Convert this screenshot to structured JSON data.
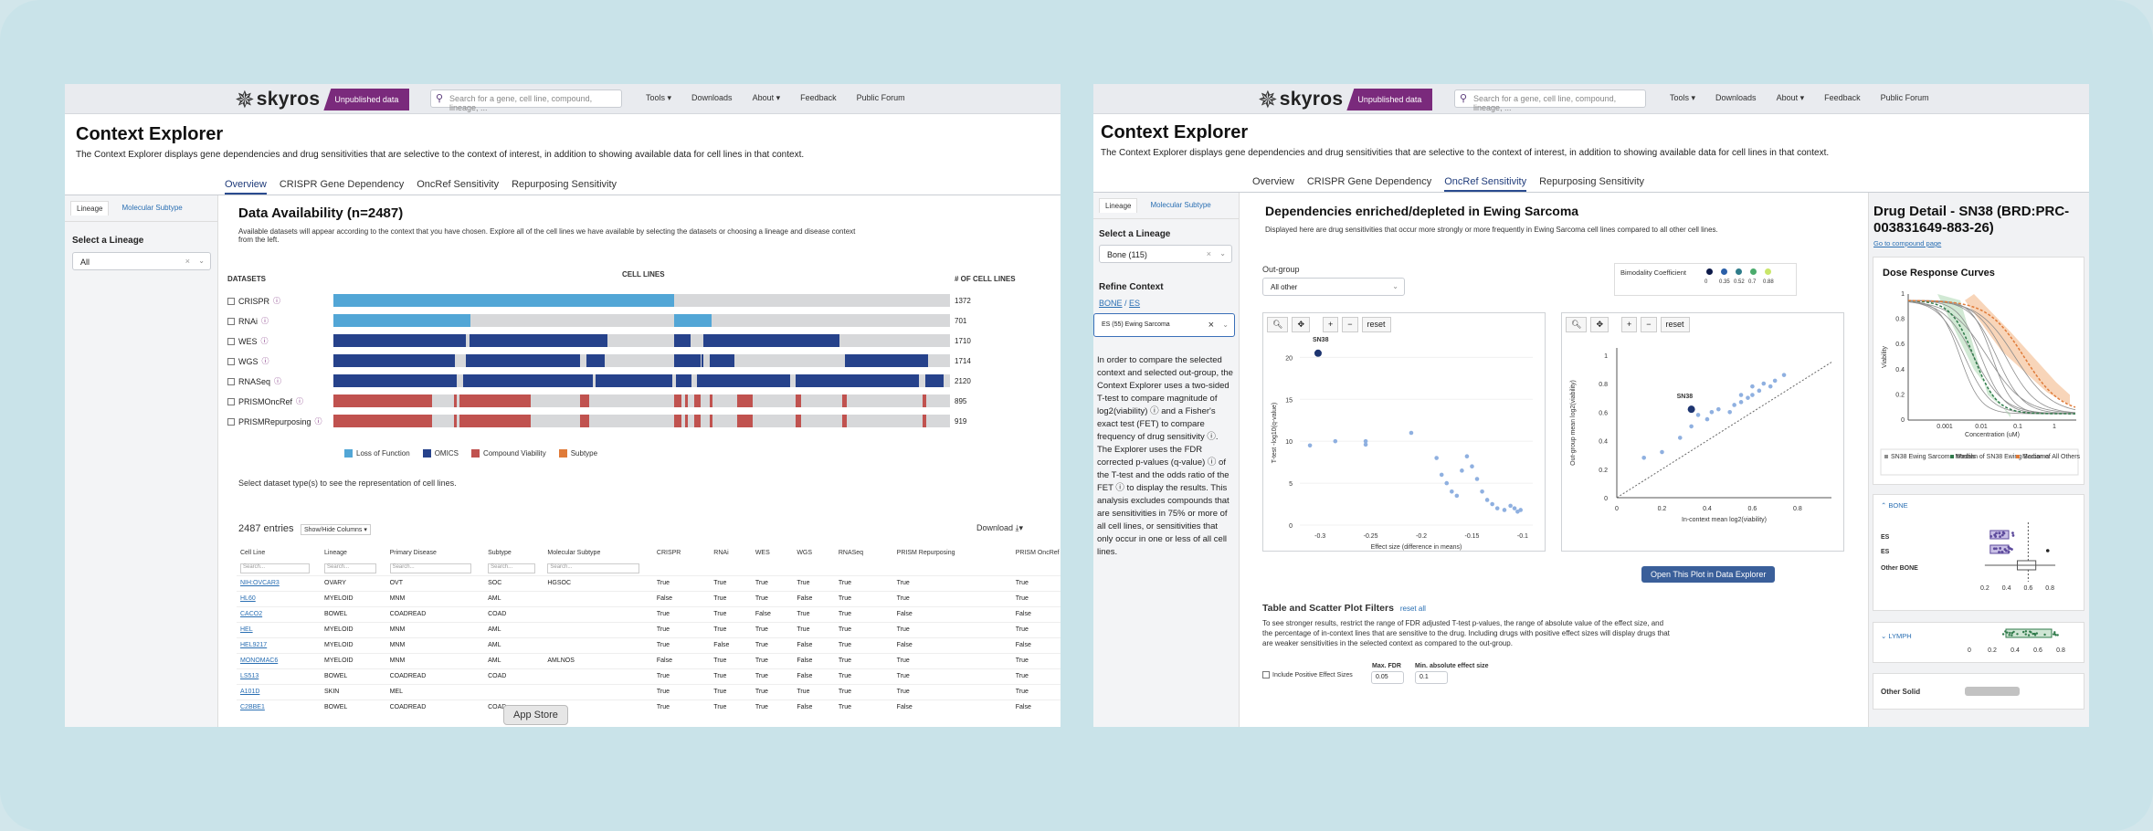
{
  "brand": {
    "name": "skyros",
    "badge": "Unpublished data"
  },
  "search": {
    "placeholder": "Search for a gene, cell line, compound, lineage, ..."
  },
  "nav": {
    "tools": "Tools ▾",
    "downloads": "Downloads",
    "about": "About ▾",
    "feedback": "Feedback",
    "forum": "Public Forum"
  },
  "page": {
    "title": "Context Explorer",
    "description": "The Context Explorer displays gene dependencies and drug sensitivities that are selective to the context of interest, in addition to showing available data for cell lines in that context."
  },
  "tabs": [
    "Overview",
    "CRISPR Gene Dependency",
    "OncRef Sensitivity",
    "Repurposing Sensitivity"
  ],
  "sidebar": {
    "tab_lineage": "Lineage",
    "tab_subtype": "Molecular Subtype",
    "select_lineage": "Select a Lineage"
  },
  "left": {
    "lineage_value": "All",
    "heading": "Data Availability (n=2487)",
    "subtitle": "Available datasets will appear according to the context that you have chosen. Explore all of the cell lines we have available by selecting the datasets or choosing a lineage and disease context from the left.",
    "col_datasets": "DATASETS",
    "col_celllines": "CELL LINES",
    "col_count": "# OF CELL LINES",
    "datasets": [
      {
        "name": "CRISPR",
        "count": "1372",
        "color": "#52a6d6",
        "segs": [
          [
            0,
            0.553
          ]
        ]
      },
      {
        "name": "RNAi",
        "count": "701",
        "color": "#52a6d6",
        "segs": [
          [
            0,
            0.222
          ],
          [
            0.553,
            0.613
          ]
        ]
      },
      {
        "name": "WES",
        "count": "1710",
        "color": "#26428b",
        "segs": [
          [
            0,
            0.215
          ],
          [
            0.22,
            0.445
          ],
          [
            0.553,
            0.58
          ],
          [
            0.6,
            0.82
          ]
        ]
      },
      {
        "name": "WGS",
        "count": "1714",
        "color": "#26428b",
        "segs": [
          [
            0,
            0.197
          ],
          [
            0.215,
            0.4
          ],
          [
            0.41,
            0.44
          ],
          [
            0.553,
            0.595
          ],
          [
            0.597,
            0.6
          ],
          [
            0.61,
            0.65
          ],
          [
            0.83,
            0.965
          ]
        ]
      },
      {
        "name": "RNASeq",
        "count": "2120",
        "color": "#26428b",
        "segs": [
          [
            0,
            0.2
          ],
          [
            0.21,
            0.42
          ],
          [
            0.425,
            0.55
          ],
          [
            0.555,
            0.58
          ],
          [
            0.59,
            0.74
          ],
          [
            0.75,
            0.95
          ],
          [
            0.96,
            0.99
          ]
        ]
      },
      {
        "name": "PRISMOncRef",
        "count": "895",
        "color": "#c0524f",
        "segs": [
          [
            0,
            0.16
          ],
          [
            0.195,
            0.2
          ],
          [
            0.205,
            0.32
          ],
          [
            0.4,
            0.415
          ],
          [
            0.553,
            0.565
          ],
          [
            0.57,
            0.575
          ],
          [
            0.585,
            0.595
          ],
          [
            0.61,
            0.615
          ],
          [
            0.655,
            0.68
          ],
          [
            0.75,
            0.758
          ],
          [
            0.825,
            0.833
          ],
          [
            0.955,
            0.962
          ]
        ]
      },
      {
        "name": "PRISMRepurposing",
        "count": "919",
        "color": "#c0524f",
        "segs": [
          [
            0,
            0.16
          ],
          [
            0.195,
            0.2
          ],
          [
            0.205,
            0.32
          ],
          [
            0.4,
            0.415
          ],
          [
            0.553,
            0.565
          ],
          [
            0.57,
            0.575
          ],
          [
            0.585,
            0.595
          ],
          [
            0.61,
            0.615
          ],
          [
            0.655,
            0.68
          ],
          [
            0.75,
            0.758
          ],
          [
            0.825,
            0.833
          ],
          [
            0.955,
            0.962
          ]
        ]
      }
    ],
    "legend": [
      {
        "label": "Loss of Function",
        "color": "#52a6d6"
      },
      {
        "label": "OMICS",
        "color": "#26428b"
      },
      {
        "label": "Compound Viability",
        "color": "#c0524f"
      },
      {
        "label": "Subtype",
        "color": "#e07b39"
      }
    ],
    "select_hint": "Select dataset type(s) to see the representation of cell lines.",
    "entries": "2487 entries",
    "showhide": "Show/Hide Columns ▾",
    "download": "Download",
    "search_ph": "Search...",
    "columns": [
      "Cell Line",
      "Lineage",
      "Primary Disease",
      "Subtype",
      "Molecular Subtype",
      "CRISPR",
      "RNAi",
      "WES",
      "WGS",
      "RNASeq",
      "PRISM Repurposing",
      "PRISM OncRef"
    ],
    "rows": [
      [
        "NIH:OVCAR3",
        "OVARY",
        "OVT",
        "SOC",
        "HGSOC",
        "True",
        "True",
        "True",
        "True",
        "True",
        "True",
        "True"
      ],
      [
        "HL60",
        "MYELOID",
        "MNM",
        "AML",
        "",
        "False",
        "True",
        "True",
        "False",
        "True",
        "True",
        "True"
      ],
      [
        "CACO2",
        "BOWEL",
        "COADREAD",
        "COAD",
        "",
        "True",
        "True",
        "False",
        "True",
        "True",
        "False",
        "False"
      ],
      [
        "HEL",
        "MYELOID",
        "MNM",
        "AML",
        "",
        "True",
        "True",
        "True",
        "True",
        "True",
        "True",
        "True"
      ],
      [
        "HEL9217",
        "MYELOID",
        "MNM",
        "AML",
        "",
        "True",
        "False",
        "True",
        "False",
        "True",
        "False",
        "False"
      ],
      [
        "MONOMAC6",
        "MYELOID",
        "MNM",
        "AML",
        "AMLNOS",
        "False",
        "True",
        "True",
        "False",
        "True",
        "True",
        "True"
      ],
      [
        "LS513",
        "BOWEL",
        "COADREAD",
        "COAD",
        "",
        "True",
        "True",
        "True",
        "False",
        "True",
        "True",
        "True"
      ],
      [
        "A101D",
        "SKIN",
        "MEL",
        "",
        "",
        "True",
        "True",
        "True",
        "True",
        "True",
        "True",
        "True"
      ],
      [
        "C2BBE1",
        "BOWEL",
        "COADREAD",
        "COAD",
        "",
        "True",
        "True",
        "True",
        "False",
        "True",
        "False",
        "False"
      ]
    ],
    "appstore": "App Store"
  },
  "right": {
    "lineage_value": "Bone (115)",
    "refine": "Refine Context",
    "crumb1": "BONE",
    "crumb_sep": " / ",
    "crumb2": "ES",
    "context_value": "ES (55) Ewing Sarcoma",
    "explain": "In order to compare the selected context and selected out-group, the Context Explorer uses a two-sided T-test to compare magnitude of log2(viability) ⓘ and a Fisher's exact test (FET) to compare frequency of drug sensitivity ⓘ. The Explorer uses the FDR corrected p-values (q-value) ⓘ of the T-test and the odds ratio of the FET ⓘ to display the results. This analysis excludes compounds that are sensitivities in 75% or more of all cell lines, or sensitivities that only occur in one or less of all cell lines.",
    "heading": "Dependencies enriched/depleted in Ewing Sarcoma",
    "subtitle": "Displayed here are drug sensitivities that occur more strongly or more frequently in Ewing Sarcoma cell lines compared to all other cell lines.",
    "outgroup_label": "Out-group",
    "outgroup_value": "All other",
    "bimodality": "Bimodality Coefficient",
    "bimodality_ticks": [
      "0",
      "0.35",
      "0.52",
      "0.7",
      "0.88"
    ],
    "bimodality_colors": [
      "#0d1a4a",
      "#2a5fa8",
      "#2e7c8a",
      "#4bab6c",
      "#c9e66a"
    ],
    "reset": "reset",
    "plot1": {
      "xlabel": "Effect size (difference in means)",
      "ylabel": "T-test -log10(q-value)",
      "xticks": [
        "-0.3",
        "-0.25",
        "-0.2",
        "-0.15",
        "-0.1"
      ],
      "yticks": [
        "0",
        "5",
        "10",
        "15",
        "20"
      ],
      "label": "SN38"
    },
    "plot2": {
      "xlabel": "In-context mean log2(viability)",
      "ylabel": "Out-group mean log2(viability)",
      "xticks": [
        "0",
        "0.2",
        "0.4",
        "0.6",
        "0.8"
      ],
      "yticks": [
        "0",
        "0.2",
        "0.4",
        "0.6",
        "0.8",
        "1"
      ],
      "label": "SN38"
    },
    "open_plot": "Open This Plot in Data Explorer",
    "filters_title": "Table and Scatter Plot Filters",
    "reset_all": "reset all",
    "filters_desc": "To see stronger results, restrict the range of FDR adjusted T-test p-values, the range of absolute value of the effect size, and the percentage of in-context lines that are sensitive to the drug. Including drugs with positive effect sizes will display drugs that are weaker sensitivities in the selected context as compared to the out-group.",
    "include_pos": "Include Positive Effect Sizes",
    "max_fdr_label": "Max. FDR",
    "max_fdr": "0.05",
    "min_eff_label": "Min. absolute effect size",
    "min_eff": "0.1",
    "drug_title": "Drug Detail - SN38 (BRD:PRC-003831649-883-26)",
    "compound_link": "Go to compound page",
    "dose_title": "Dose Response Curves",
    "dose_xlabel": "Concentration (uM)",
    "dose_ylabel": "Viability",
    "dose_xticks": [
      "0.001",
      "0.01",
      "0.1",
      "1"
    ],
    "dose_yticks": [
      "0",
      "0.2",
      "0.4",
      "0.6",
      "0.8",
      "1"
    ],
    "dose_legend": [
      "SN38 Ewing Sarcoma Models",
      "Median of SN38 Ewing Sarcoma",
      "Median of All Others"
    ],
    "bone": "BONE",
    "es_label": "ES",
    "other_bone": "Other BONE",
    "lymph": "LYMPH",
    "other_solid": "Other Solid",
    "box_ticks": [
      "0.2",
      "0.4",
      "0.6",
      "0.8"
    ],
    "box_ticks2": [
      "0",
      "0.2",
      "0.4",
      "0.6",
      "0.8"
    ]
  }
}
